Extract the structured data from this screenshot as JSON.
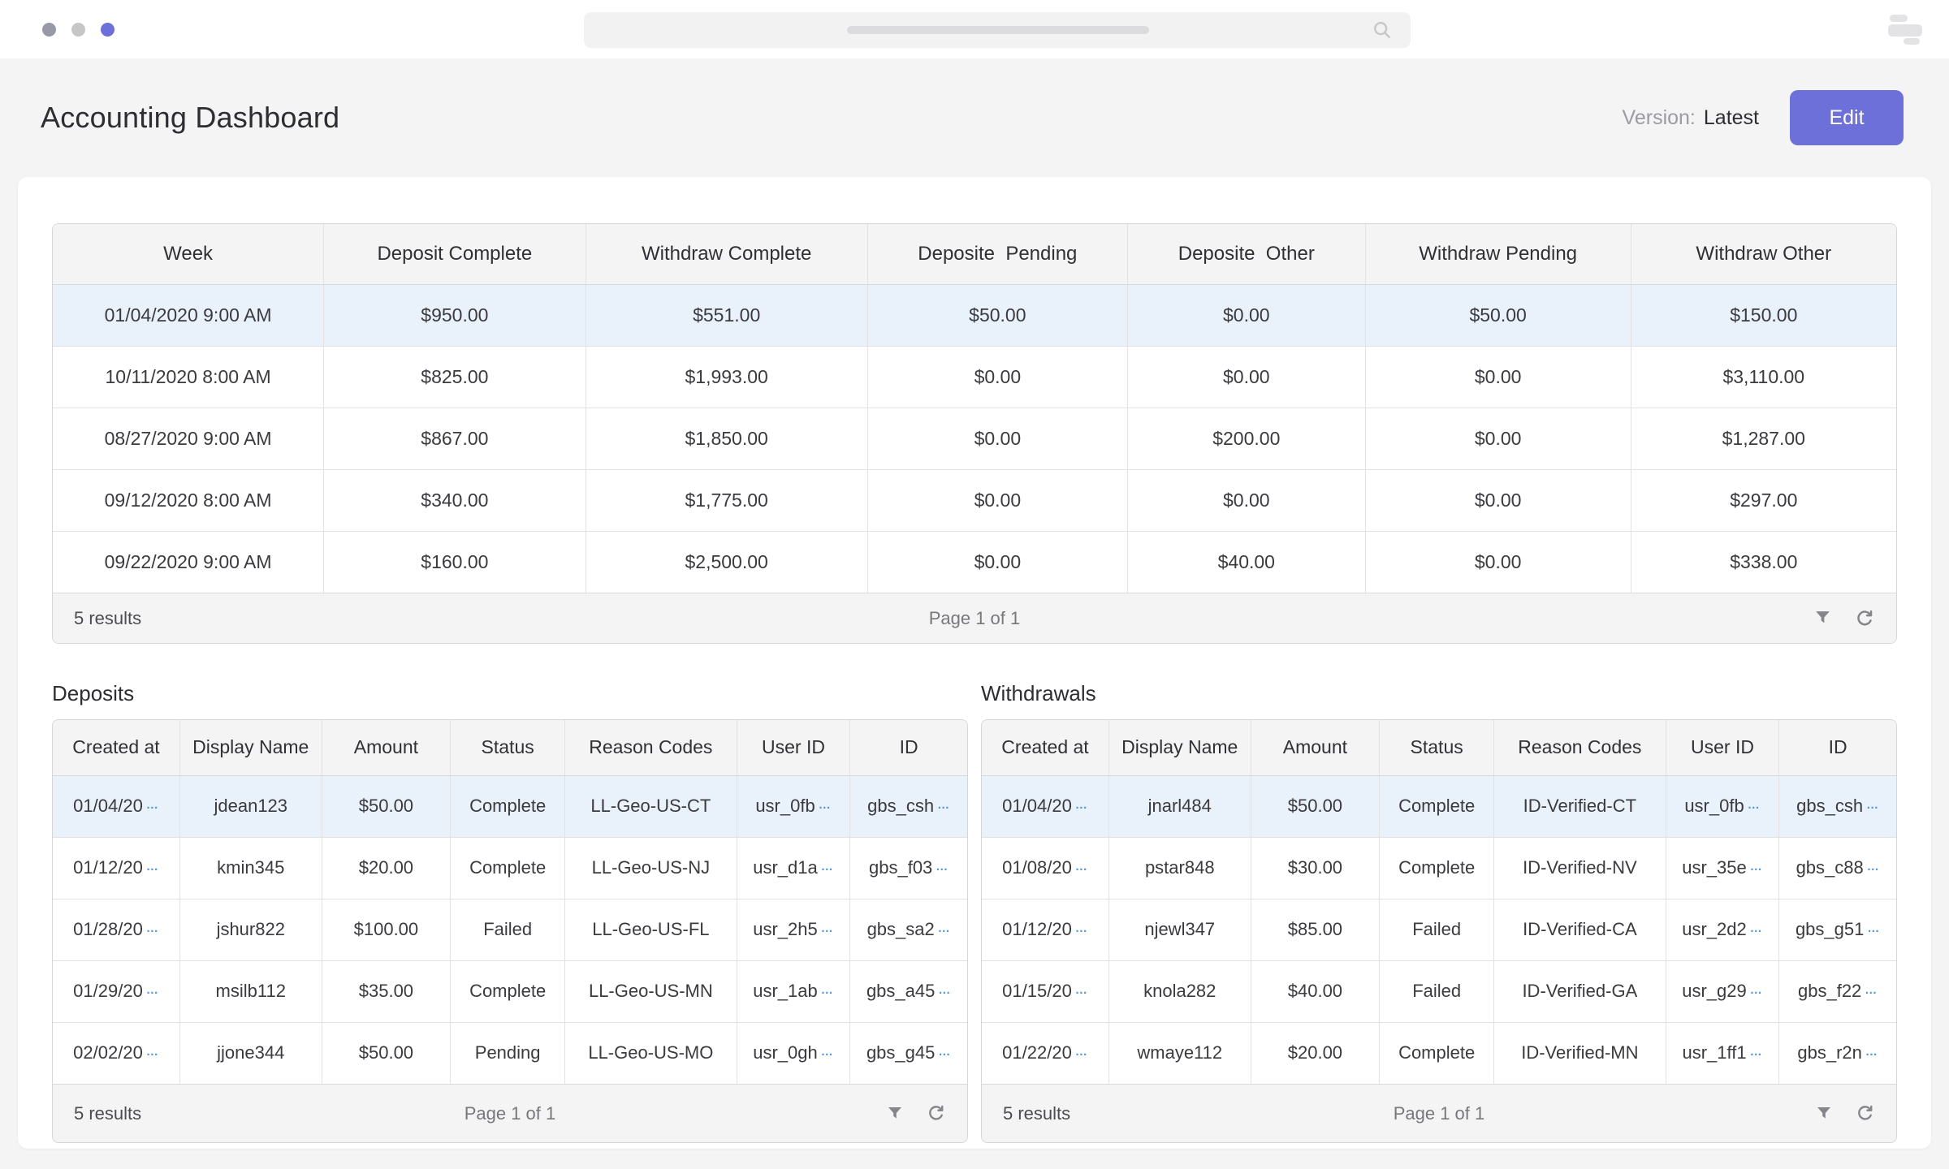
{
  "header": {
    "title": "Accounting Dashboard",
    "version_label": "Version:",
    "version_value": "Latest",
    "edit_label": "Edit"
  },
  "weekly": {
    "columns": [
      "Week",
      "Deposit Complete",
      "Withdraw Complete",
      "Deposite  Pending",
      "Deposite  Other",
      "Withdraw Pending",
      "Withdraw Other"
    ],
    "rows": [
      [
        "01/04/2020 9:00 AM",
        "$950.00",
        "$551.00",
        "$50.00",
        "$0.00",
        "$50.00",
        "$150.00"
      ],
      [
        "10/11/2020 8:00 AM",
        "$825.00",
        "$1,993.00",
        "$0.00",
        "$0.00",
        "$0.00",
        "$3,110.00"
      ],
      [
        "08/27/2020 9:00 AM",
        "$867.00",
        "$1,850.00",
        "$0.00",
        "$200.00",
        "$0.00",
        "$1,287.00"
      ],
      [
        "09/12/2020 8:00 AM",
        "$340.00",
        "$1,775.00",
        "$0.00",
        "$0.00",
        "$0.00",
        "$297.00"
      ],
      [
        "09/22/2020 9:00 AM",
        "$160.00",
        "$2,500.00",
        "$0.00",
        "$40.00",
        "$0.00",
        "$338.00"
      ]
    ],
    "results": "5 results",
    "page": "Page 1 of 1"
  },
  "deposits": {
    "title": "Deposits",
    "columns": [
      "Created at",
      "Display Name",
      "Amount",
      "Status",
      "Reason Codes",
      "User ID",
      "ID"
    ],
    "rows": [
      [
        "01/04/20",
        "jdean123",
        "$50.00",
        "Complete",
        "LL-Geo-US-CT",
        "usr_0fb",
        "gbs_csh"
      ],
      [
        "01/12/20",
        "kmin345",
        "$20.00",
        "Complete",
        "LL-Geo-US-NJ",
        "usr_d1a",
        "gbs_f03"
      ],
      [
        "01/28/20",
        "jshur822",
        "$100.00",
        "Failed",
        "LL-Geo-US-FL",
        "usr_2h5",
        "gbs_sa2"
      ],
      [
        "01/29/20",
        "msilb112",
        "$35.00",
        "Complete",
        "LL-Geo-US-MN",
        "usr_1ab",
        "gbs_a45"
      ],
      [
        "02/02/20",
        "jjone344",
        "$50.00",
        "Pending",
        "LL-Geo-US-MO",
        "usr_0gh",
        "gbs_g45"
      ]
    ],
    "results": "5 results",
    "page": "Page 1 of 1"
  },
  "withdrawals": {
    "title": "Withdrawals",
    "columns": [
      "Created at",
      "Display Name",
      "Amount",
      "Status",
      "Reason Codes",
      "User ID",
      "ID"
    ],
    "rows": [
      [
        "01/04/20",
        "jnarl484",
        "$50.00",
        "Complete",
        "ID-Verified-CT",
        "usr_0fb",
        "gbs_csh"
      ],
      [
        "01/08/20",
        "pstar848",
        "$30.00",
        "Complete",
        "ID-Verified-NV",
        "usr_35e",
        "gbs_c88"
      ],
      [
        "01/12/20",
        "njewl347",
        "$85.00",
        "Failed",
        "ID-Verified-CA",
        "usr_2d2",
        "gbs_g51"
      ],
      [
        "01/15/20",
        "knola282",
        "$40.00",
        "Failed",
        "ID-Verified-GA",
        "usr_g29",
        "gbs_f22"
      ],
      [
        "01/22/20",
        "wmaye112",
        "$20.00",
        "Complete",
        "ID-Verified-MN",
        "usr_1ff1",
        "gbs_r2n"
      ]
    ],
    "results": "5 results",
    "page": "Page 1 of 1"
  },
  "ui": {
    "ellipsis": "…",
    "icons": {
      "search": "magnifier",
      "menu": "stacked-bars",
      "filter": "funnel",
      "refresh": "circular-arrow"
    },
    "colors": {
      "accent": "#6c70d8",
      "row_highlight": "#e9f1fb",
      "truncation_blue": "#4e97d8",
      "header_bg": "#f4f4f5"
    }
  }
}
